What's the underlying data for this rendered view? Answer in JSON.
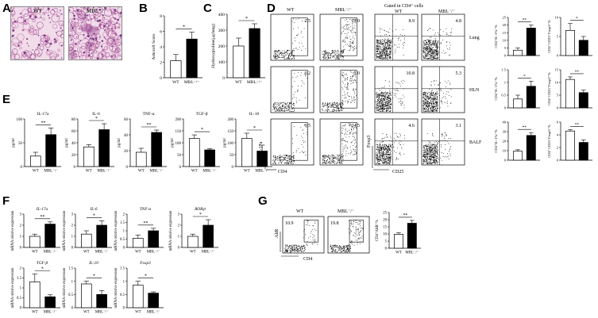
{
  "panels": {
    "A": {
      "label": "A",
      "groups": [
        "WT",
        "MBL⁻/⁻"
      ]
    },
    "B": {
      "label": "B",
      "ylabel": "Ashcroft Score",
      "ylim": [
        0,
        8
      ],
      "yticks": [
        0,
        2,
        4,
        6,
        8
      ],
      "groups": [
        "WT",
        "MBL⁻/⁻"
      ],
      "values": [
        2.2,
        5.0
      ],
      "errors": [
        0.8,
        0.9
      ],
      "sig": "*"
    },
    "C": {
      "label": "C",
      "ylabel": "Hydroxyproline(μg/lung)",
      "ylim": [
        0,
        400
      ],
      "yticks": [
        0,
        100,
        200,
        300,
        400
      ],
      "groups": [
        "WT",
        "MBL⁻/⁻"
      ],
      "values": [
        200,
        310
      ],
      "errors": [
        50,
        30
      ],
      "sig": "*"
    },
    "D": {
      "label": "D",
      "header": "Gated in CD4⁺ cells",
      "col_wt": "WT",
      "col_ko": "MBL⁻/⁻",
      "col_wt2": "WT",
      "col_ko2": "MBL⁻/⁻",
      "x_il17": "CD4",
      "y_il17": "IL-17a",
      "x_foxp3": "CD25",
      "y_foxp3": "Foxp3",
      "rows": [
        {
          "tissue": "Lung",
          "il17": [
            "2.5",
            "19.0"
          ],
          "treg": [
            "8.9",
            "4.8"
          ],
          "bar1": {
            "ylabel": "CD4⁺IL-17a⁺%",
            "ylim": [
              0,
              25
            ],
            "yticks": [
              0,
              5,
              10,
              15,
              20,
              25
            ],
            "values": [
              3.5,
              18
            ],
            "errors": [
              1.5,
              2
            ],
            "sig": "**"
          },
          "bar2": {
            "ylabel": "CD4⁺CD25⁺Foxp3⁺%",
            "ylim": [
              0,
              10
            ],
            "yticks": [
              0,
              5,
              10
            ],
            "values": [
              6.6,
              4.0
            ],
            "errors": [
              1.8,
              1.0
            ],
            "sig": "*"
          }
        },
        {
          "tissue": "HLN",
          "il17": [
            "0.2",
            "1.0"
          ],
          "treg": [
            "10.8",
            "5.3"
          ],
          "bar1": {
            "ylabel": "CD4⁺IL-17a⁺%",
            "ylim": [
              0,
              1.5
            ],
            "yticks": [
              0.0,
              0.5,
              1.0,
              1.5
            ],
            "values": [
              0.35,
              0.85
            ],
            "errors": [
              0.15,
              0.2
            ],
            "sig": "*"
          },
          "bar2": {
            "ylabel": "CD4⁺CD25⁺Foxp3⁺%",
            "ylim": [
              0,
              15
            ],
            "yticks": [
              0,
              5,
              10,
              15
            ],
            "values": [
              11.2,
              6.0
            ],
            "errors": [
              1.0,
              1.0
            ],
            "sig": "**"
          }
        },
        {
          "tissue": "BALF",
          "il17": [
            "9.5",
            "24.5"
          ],
          "treg": [
            "4.6",
            "3.1"
          ],
          "bar1": {
            "ylabel": "CD4⁺IL-17a⁺%",
            "ylim": [
              0,
              40
            ],
            "yticks": [
              0,
              10,
              20,
              30,
              40
            ],
            "values": [
              9.5,
              26
            ],
            "errors": [
              1.5,
              3
            ],
            "sig": "**"
          },
          "bar2": {
            "ylabel": "CD4⁺CD25⁺Foxp3⁺%",
            "ylim": [
              0,
              6
            ],
            "yticks": [
              0,
              2,
              4,
              6
            ],
            "values": [
              4.6,
              2.8
            ],
            "errors": [
              0.2,
              0.4
            ],
            "sig": "**"
          }
        }
      ]
    },
    "E": {
      "label": "E",
      "ylabel": "pg/ml",
      "groups": [
        "WT",
        "MBL⁻/⁻"
      ],
      "items": [
        {
          "title": "IL-17a",
          "ylim": [
            0,
            100
          ],
          "yticks": [
            0,
            50,
            100
          ],
          "values": [
            22,
            67
          ],
          "errors": [
            8,
            14
          ],
          "sig": "**"
        },
        {
          "title": "IL-6",
          "ylim": [
            0,
            80
          ],
          "yticks": [
            0,
            20,
            40,
            60,
            80
          ],
          "values": [
            33,
            62
          ],
          "errors": [
            4,
            10
          ],
          "sig": "*"
        },
        {
          "title": "TNF-α",
          "ylim": [
            0,
            60
          ],
          "yticks": [
            0,
            20,
            40,
            60
          ],
          "values": [
            18,
            43
          ],
          "errors": [
            5,
            3
          ],
          "sig": "**"
        },
        {
          "title": "TGF-β",
          "ylim": [
            0,
            200
          ],
          "yticks": [
            0,
            50,
            100,
            150,
            200
          ],
          "values": [
            118,
            70
          ],
          "errors": [
            15,
            5
          ],
          "sig": "*"
        },
        {
          "title": "IL-10",
          "ylim": [
            0,
            200
          ],
          "yticks": [
            0,
            50,
            100,
            150,
            200
          ],
          "values": [
            118,
            65
          ],
          "errors": [
            22,
            25
          ],
          "sig": "*"
        }
      ]
    },
    "F": {
      "label": "F",
      "ylabel": "mRNA relative expression",
      "groups": [
        "WT",
        "MBL⁻/⁻"
      ],
      "row1": [
        {
          "title": "IL-17a",
          "ylim": [
            0,
            3
          ],
          "yticks": [
            0,
            1,
            2,
            3
          ],
          "values": [
            1.0,
            2.1
          ],
          "errors": [
            0.2,
            0.2
          ],
          "sig": "**"
        },
        {
          "title": "IL-6",
          "ylim": [
            0,
            3
          ],
          "yticks": [
            0,
            1,
            2,
            3
          ],
          "values": [
            1.2,
            2.0
          ],
          "errors": [
            0.3,
            0.4
          ],
          "sig": "*"
        },
        {
          "title": "TNF-α",
          "ylim": [
            0,
            2.0
          ],
          "yticks": [
            0.0,
            0.5,
            1.0,
            1.5,
            2.0
          ],
          "values": [
            0.55,
            1.0
          ],
          "errors": [
            0.2,
            0.15
          ],
          "sig": "**"
        },
        {
          "title": "RORγt",
          "ylim": [
            0,
            3
          ],
          "yticks": [
            0,
            1,
            2,
            3
          ],
          "values": [
            1.0,
            2.0
          ],
          "errors": [
            0.2,
            0.5
          ],
          "sig": "*"
        }
      ],
      "row2": [
        {
          "title": "TGF-β",
          "ylim": [
            0,
            2.0
          ],
          "yticks": [
            0.0,
            0.5,
            1.0,
            1.5,
            2.0
          ],
          "values": [
            1.3,
            0.55
          ],
          "errors": [
            0.4,
            0.1
          ],
          "sig": "*"
        },
        {
          "title": "IL-10",
          "ylim": [
            0,
            1.5
          ],
          "yticks": [
            0.0,
            0.5,
            1.0,
            1.5
          ],
          "values": [
            0.9,
            0.5
          ],
          "errors": [
            0.1,
            0.15
          ],
          "sig": "*"
        },
        {
          "title": "Foxp3",
          "ylim": [
            0,
            1.5
          ],
          "yticks": [
            0.0,
            0.5,
            1.0,
            1.5
          ],
          "values": [
            0.85,
            0.55
          ],
          "errors": [
            0.15,
            0.05
          ],
          "sig": "*"
        }
      ]
    },
    "G": {
      "label": "G",
      "col_wt": "WT",
      "col_ko": "MBL⁻/⁻",
      "ylab": "AhR",
      "xlab": "CD4",
      "gates": [
        "10.9",
        "19.8"
      ],
      "bar": {
        "ylabel": "CD4⁺AhR⁺%",
        "ylim": [
          0,
          25
        ],
        "yticks": [
          0,
          5,
          10,
          15,
          20,
          25
        ],
        "values": [
          9.8,
          17.5
        ],
        "errors": [
          1,
          2
        ],
        "sig": "**",
        "groups": [
          "WT",
          "MBL⁻/⁻"
        ]
      }
    }
  },
  "chart_data": [
    {
      "type": "bar",
      "panel": "B",
      "categories": [
        "WT",
        "MBL⁻/⁻"
      ],
      "values": [
        2.2,
        5.0
      ],
      "ylabel": "Ashcroft Score",
      "ylim": [
        0,
        8
      ]
    },
    {
      "type": "bar",
      "panel": "C",
      "categories": [
        "WT",
        "MBL⁻/⁻"
      ],
      "values": [
        200,
        310
      ],
      "ylabel": "Hydroxyproline(μg/lung)",
      "ylim": [
        0,
        400
      ]
    },
    {
      "type": "bar",
      "panel": "G",
      "categories": [
        "WT",
        "MBL⁻/⁻"
      ],
      "values": [
        9.8,
        17.5
      ],
      "ylabel": "CD4⁺AhR⁺%",
      "ylim": [
        0,
        25
      ]
    }
  ],
  "colors": {
    "wt": "#ffffff",
    "ko": "#000000",
    "histo": "#d8a4c8"
  }
}
